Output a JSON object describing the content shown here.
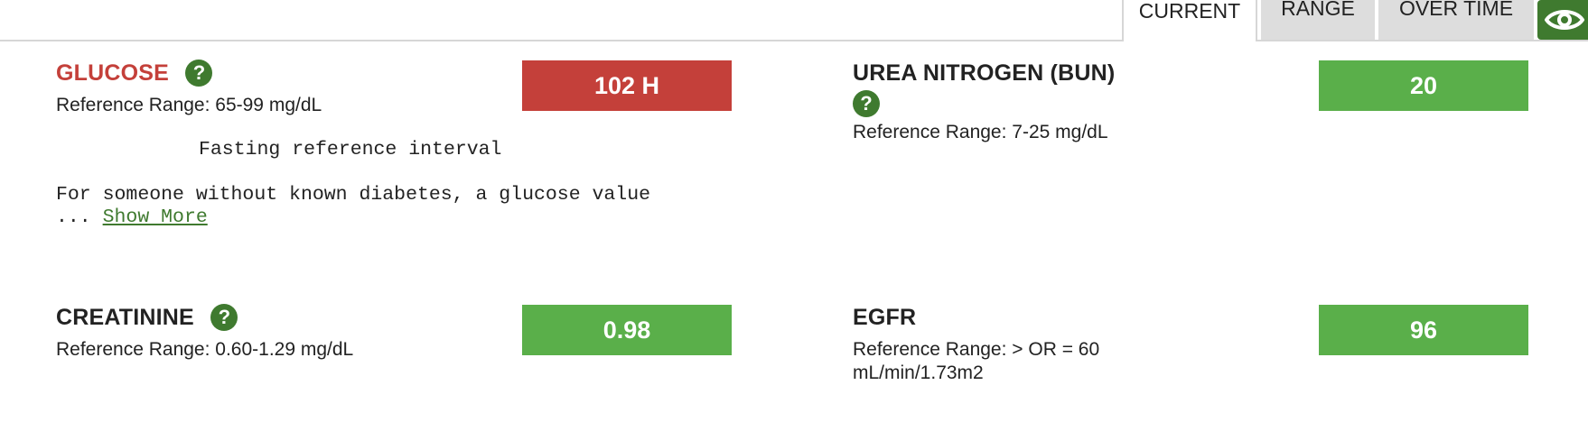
{
  "tabs": {
    "current": "CURRENT",
    "range": "RANGE",
    "over_time": "OVER TIME",
    "view_icon": "eye-icon"
  },
  "results": [
    {
      "name": "GLUCOSE",
      "reference": "Reference Range: 65-99 mg/dL",
      "value": "102 H",
      "status": "high",
      "note_heading": "Fasting reference interval",
      "note_text": "For someone without known diabetes, a glucose value",
      "ellipsis": "...",
      "show_more": "Show More"
    },
    {
      "name": "UREA NITROGEN (BUN)",
      "reference": "Reference Range: 7-25 mg/dL",
      "value": "20",
      "status": "normal"
    },
    {
      "name": "CREATININE",
      "reference": "Reference Range: 0.60-1.29 mg/dL",
      "value": "0.98",
      "status": "normal"
    },
    {
      "name": "EGFR",
      "reference_line1": "Reference Range: > OR = 60",
      "reference_line2": "mL/min/1.73m2",
      "value": "96",
      "status": "normal"
    }
  ],
  "help_glyph": "?",
  "colors": {
    "high": "#c4403a",
    "normal": "#5aaf4a",
    "accent": "#3f7a2f",
    "tab_inactive": "#dddddd"
  }
}
